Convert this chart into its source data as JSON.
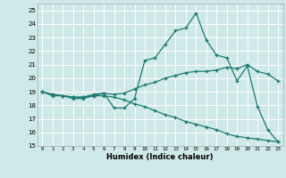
{
  "title": "",
  "xlabel": "Humidex (Indice chaleur)",
  "xlim": [
    -0.5,
    23.5
  ],
  "ylim": [
    15,
    25.5
  ],
  "yticks": [
    15,
    16,
    17,
    18,
    19,
    20,
    21,
    22,
    23,
    24,
    25
  ],
  "xticks": [
    0,
    1,
    2,
    3,
    4,
    5,
    6,
    7,
    8,
    9,
    10,
    11,
    12,
    13,
    14,
    15,
    16,
    17,
    18,
    19,
    20,
    21,
    22,
    23
  ],
  "bg_color": "#cfe8e8",
  "line_color": "#1a7a70",
  "grid_color": "#ffffff",
  "line1_y": [
    19.0,
    18.7,
    18.7,
    18.5,
    18.5,
    18.7,
    18.9,
    17.8,
    17.8,
    18.5,
    21.3,
    21.5,
    22.5,
    23.5,
    23.7,
    24.8,
    22.8,
    21.7,
    21.5,
    19.8,
    20.9,
    17.9,
    16.2,
    15.3
  ],
  "line2_y": [
    19.0,
    18.8,
    18.7,
    18.6,
    18.6,
    18.8,
    18.9,
    18.8,
    18.9,
    19.2,
    19.5,
    19.7,
    20.0,
    20.2,
    20.4,
    20.5,
    20.5,
    20.6,
    20.8,
    20.7,
    21.0,
    20.5,
    20.3,
    19.8
  ],
  "line3_y": [
    19.0,
    18.8,
    18.7,
    18.6,
    18.6,
    18.7,
    18.7,
    18.6,
    18.4,
    18.1,
    17.9,
    17.6,
    17.3,
    17.1,
    16.8,
    16.6,
    16.4,
    16.2,
    15.9,
    15.7,
    15.6,
    15.5,
    15.4,
    15.3
  ]
}
